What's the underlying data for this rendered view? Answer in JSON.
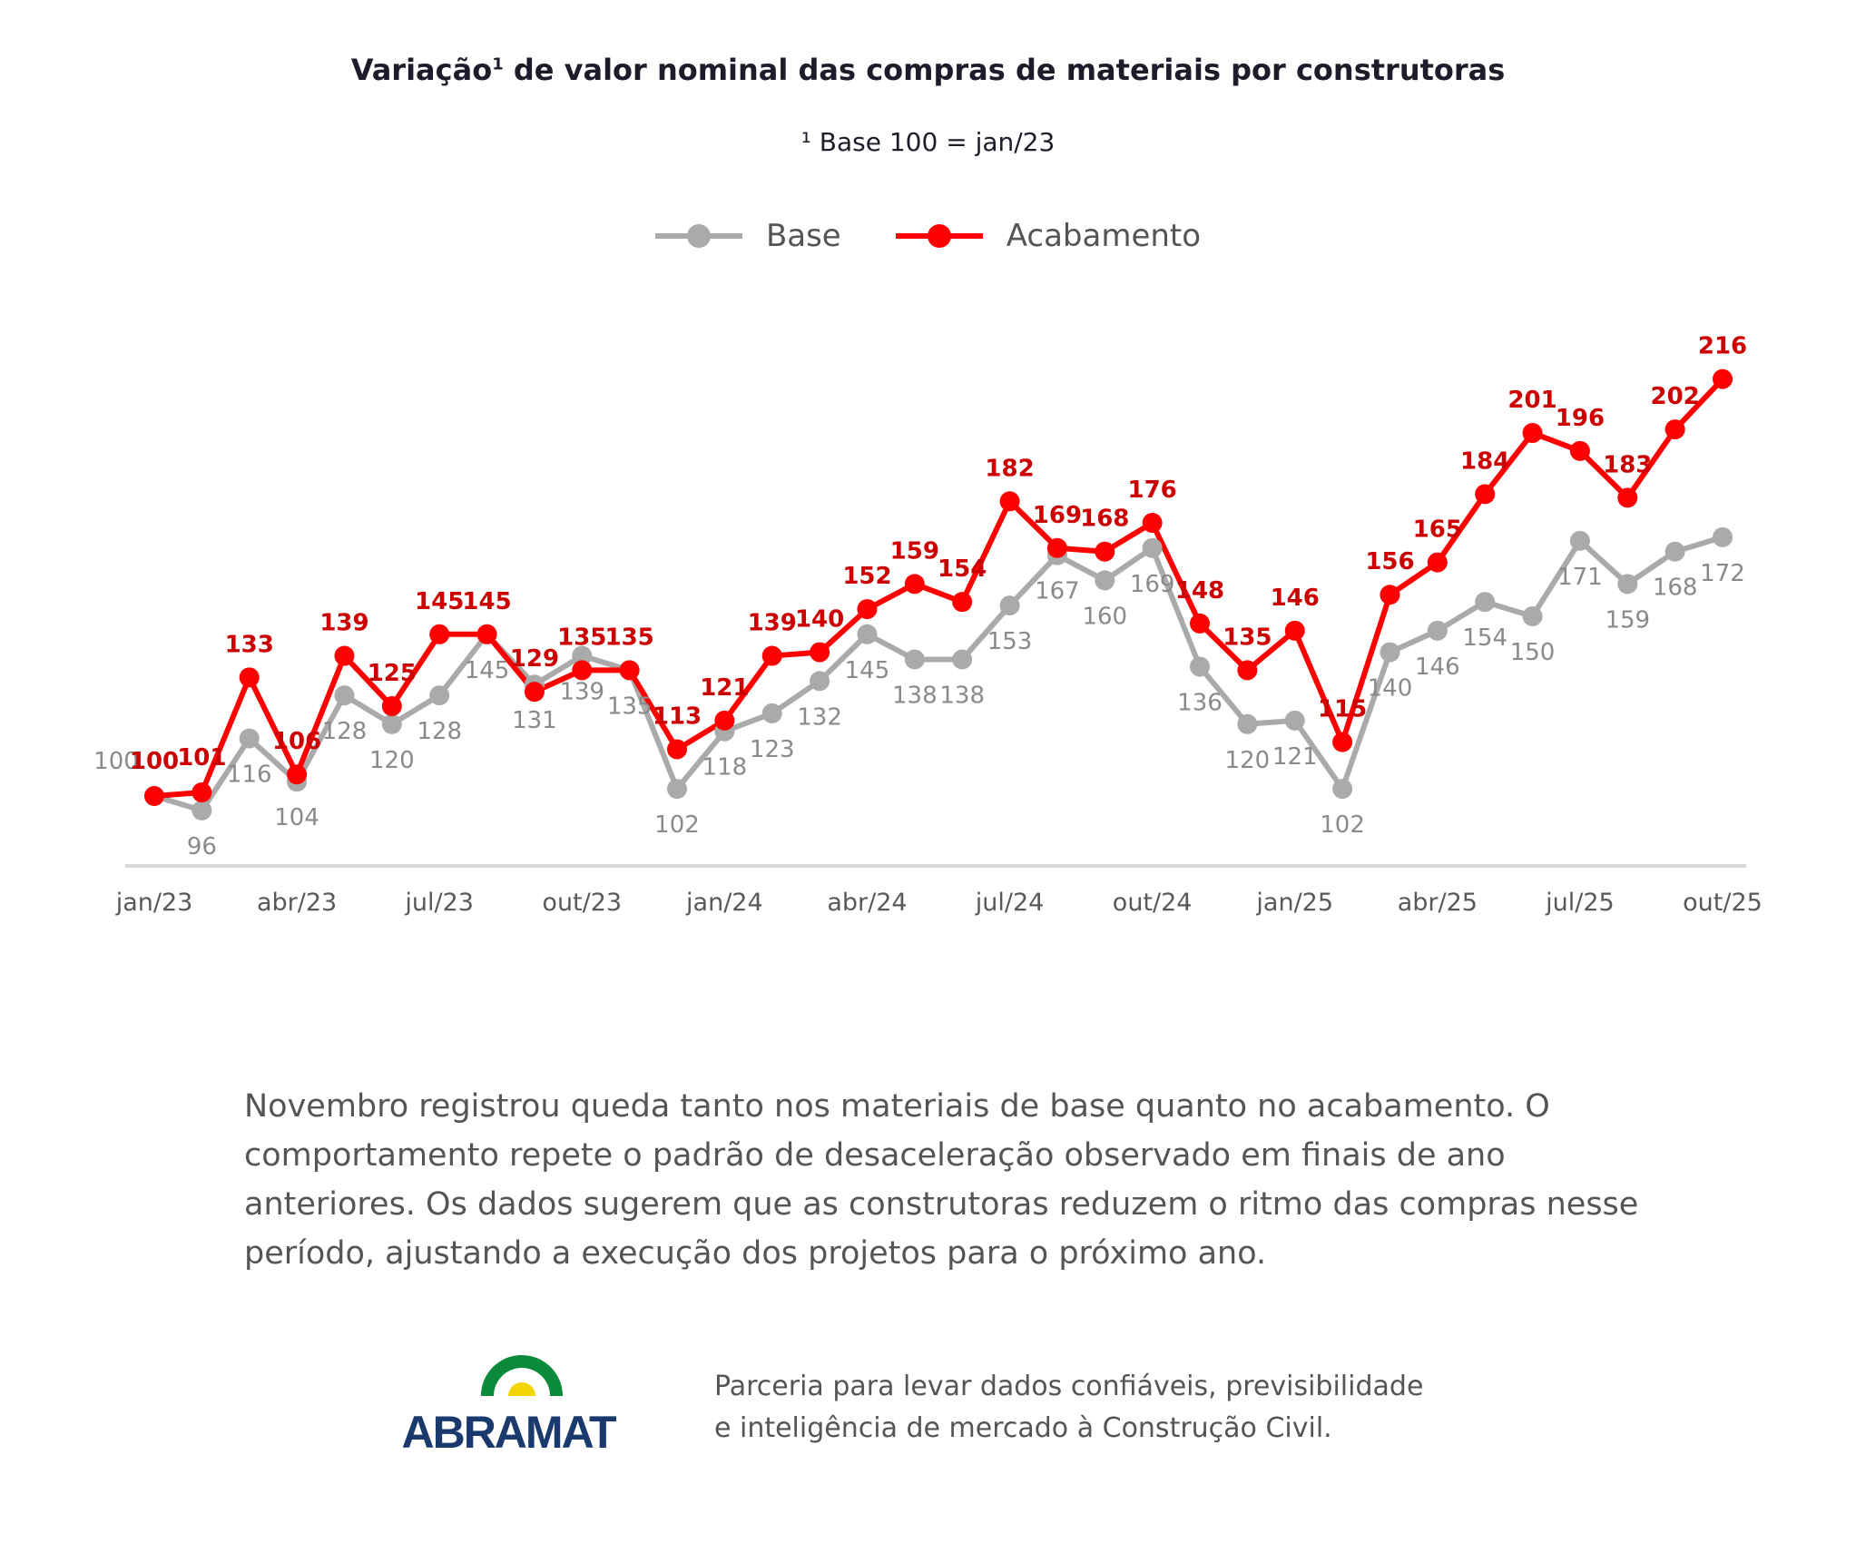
{
  "header": {
    "title_main": "Variação",
    "title_sup": "1",
    "title_rest": " de valor nominal das compras de materiais por construtoras",
    "subtitle": "¹ Base 100 = jan/23"
  },
  "chart_data": {
    "type": "line",
    "title": "Variação¹ de valor nominal das compras de materiais por construtoras",
    "subtitle": "¹ Base 100 = jan/23",
    "legend_position": "top",
    "grid": false,
    "x": [
      "jan/23",
      "fev/23",
      "mar/23",
      "abr/23",
      "mai/23",
      "jun/23",
      "jul/23",
      "ago/23",
      "set/23",
      "out/23",
      "nov/23",
      "dez/23",
      "jan/24",
      "fev/24",
      "mar/24",
      "abr/24",
      "mai/24",
      "jun/24",
      "jul/24",
      "ago/24",
      "set/24",
      "out/24",
      "nov/24",
      "dez/24",
      "jan/25",
      "fev/25",
      "mar/25",
      "abr/25",
      "mai/25",
      "jun/25",
      "jul/25",
      "ago/25",
      "set/25",
      "out/25"
    ],
    "tick_labels": [
      "jan/23",
      "abr/23",
      "jul/23",
      "out/23",
      "jan/24",
      "abr/24",
      "jul/24",
      "out/24",
      "jan/25",
      "abr/25",
      "jul/25",
      "out/25"
    ],
    "series": [
      {
        "name": "Base",
        "color": "#aaaaaa",
        "label_color": "#8a8a8a",
        "values": [
          100,
          96,
          116,
          104,
          128,
          120,
          128,
          145,
          131,
          139,
          135,
          102,
          118,
          123,
          132,
          145,
          138,
          138,
          153,
          167,
          160,
          169,
          136,
          120,
          121,
          102,
          140,
          146,
          154,
          150,
          171,
          159,
          168,
          172
        ]
      },
      {
        "name": "Acabamento",
        "color": "#ff0000",
        "label_color": "#cc0000",
        "values": [
          100,
          101,
          133,
          106,
          139,
          125,
          145,
          145,
          129,
          135,
          135,
          113,
          121,
          139,
          140,
          152,
          159,
          154,
          182,
          169,
          168,
          176,
          148,
          135,
          146,
          115,
          156,
          165,
          184,
          201,
          196,
          183,
          202,
          216
        ]
      }
    ]
  },
  "body_text": "Novembro registrou queda tanto nos materiais de base quanto no acabamento. O comportamento repete o padrão de desaceleração observado em finais de ano anteriores. Os dados sugerem que as construtoras reduzem o ritmo das compras nesse período, ajustando a execução dos projetos para o próximo ano.",
  "footer": {
    "logo_text": "ABRAMAT",
    "tagline_1": "Parceria para levar dados confiáveis, previsibilidade",
    "tagline_2": "e inteligência de mercado à Construção Civil."
  }
}
